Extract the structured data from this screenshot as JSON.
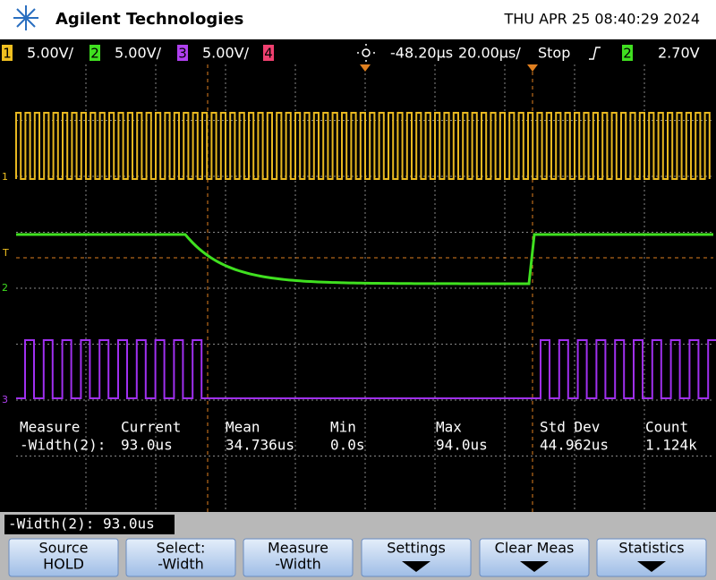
{
  "header": {
    "brand": "Agilent Technologies",
    "datetime": "THU APR 25 08:40:29 2024"
  },
  "status": {
    "channels": [
      {
        "number": "1",
        "scale": "5.00V/"
      },
      {
        "number": "2",
        "scale": "5.00V/"
      },
      {
        "number": "3",
        "scale": "5.00V/"
      },
      {
        "number": "4"
      }
    ],
    "delay": "-48.20µs",
    "timebase": "20.00µs/",
    "run_state": "Stop",
    "trigger_source": "2",
    "trigger_level": "2.70V"
  },
  "markers": [
    "1",
    "T",
    "2",
    "3"
  ],
  "measurements": {
    "headers": [
      "Measure",
      "Current",
      "Mean",
      "Min",
      "Max",
      "Std Dev",
      "Count"
    ],
    "row": [
      "-Width(2):",
      "93.0us",
      "34.736us",
      "0.0s",
      "94.0us",
      "44.962us",
      "1.124k"
    ]
  },
  "readout": "-Width(2): 93.0us",
  "softkeys": [
    {
      "lines": [
        "Source",
        "HOLD"
      ]
    },
    {
      "lines": [
        "Select:",
        "-Width"
      ]
    },
    {
      "lines": [
        "Measure",
        "-Width"
      ]
    },
    {
      "lines": [
        "Settings"
      ]
    },
    {
      "lines": [
        "Clear Meas"
      ]
    },
    {
      "lines": [
        "Statistics"
      ]
    }
  ]
}
